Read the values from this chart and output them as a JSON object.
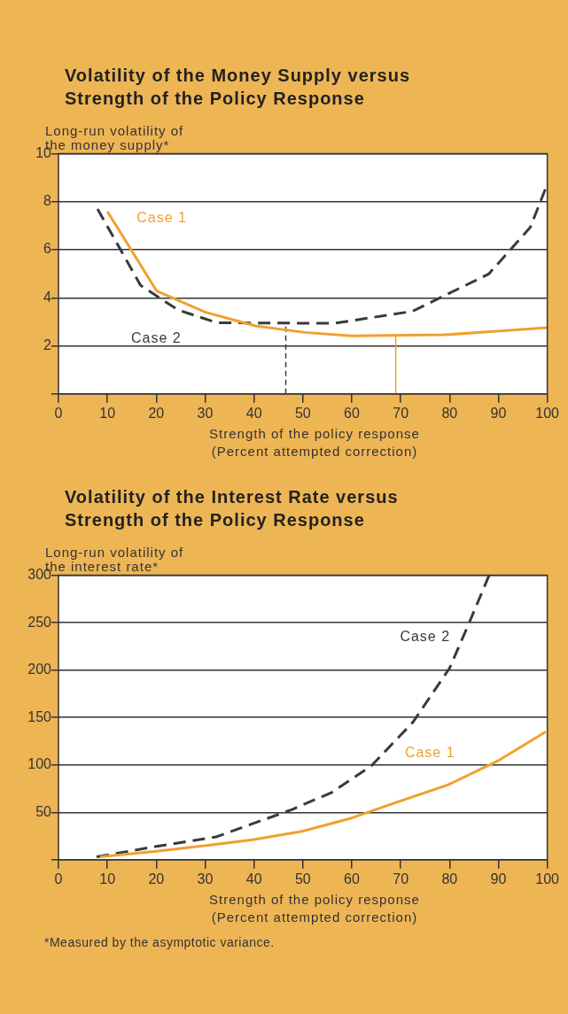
{
  "chart_data": [
    {
      "type": "line",
      "title": "Volatility of the Money Supply versus Strength of the Policy Response",
      "ylabel": "Long-run volatility of the money supply*",
      "xlabel": "Strength of the policy response (Percent attempted correction)",
      "xlim": [
        0,
        100
      ],
      "xticks": [
        0,
        10,
        20,
        30,
        40,
        50,
        60,
        70,
        80,
        90,
        100
      ],
      "ylim": [
        0,
        10
      ],
      "yticks": [
        {
          "value": 0,
          "label": null
        },
        2,
        4,
        6,
        8,
        10
      ],
      "grid": "y",
      "series": [
        {
          "name": "Case 1",
          "color": "#f0a030",
          "line_style": "solid",
          "x": [
            10,
            20.1,
            30.1,
            40.3,
            50.4,
            59.9,
            78.9,
            89,
            100
          ],
          "values": [
            7.6,
            4.28,
            3.4,
            2.83,
            2.56,
            2.42,
            2.46,
            2.6,
            2.76
          ]
        },
        {
          "name": "Case 2",
          "color": "#3a3a3a",
          "line_style": "dashed",
          "x": [
            8,
            16.8,
            24.4,
            32.5,
            56.5,
            72.4,
            88,
            96.5,
            99.7
          ],
          "values": [
            7.7,
            4.52,
            3.5,
            2.96,
            2.94,
            3.44,
            4.99,
            6.93,
            8.58
          ]
        },
        {
          "color": "#3a3a3a",
          "line_style": "dashed",
          "x": [
            46.5,
            46.5
          ],
          "values": [
            0,
            2.9
          ]
        },
        {
          "color": "#f0a030",
          "line_style": "solid",
          "x": [
            69,
            69
          ],
          "values": [
            0,
            2.43
          ]
        }
      ]
    },
    {
      "type": "line",
      "title": "Volatility of the Interest Rate versus Strength of the Policy Response",
      "ylabel": "Long-run volatility of the interest rate*",
      "xlabel": "Strength of the policy response (Percent attempted correction)",
      "xlim": [
        0,
        100
      ],
      "xticks": [
        0,
        10,
        20,
        30,
        40,
        50,
        60,
        70,
        80,
        90,
        100
      ],
      "ylim": [
        0,
        300
      ],
      "yticks": [
        {
          "value": 0,
          "label": null
        },
        50,
        100,
        150,
        200,
        250,
        300
      ],
      "grid": "y",
      "annotations": [
        "*Measured by the asymptotic variance."
      ],
      "series": [
        {
          "name": "Case 1",
          "color": "#f0a030",
          "line_style": "solid",
          "x": [
            8.5,
            20,
            30.2,
            39.7,
            49.8,
            60,
            68.8,
            79.7,
            89.8,
            99.7
          ],
          "values": [
            3,
            9,
            15,
            21,
            30,
            44,
            60,
            79,
            104,
            135
          ]
        },
        {
          "name": "Case 2",
          "color": "#3a3a3a",
          "line_style": "dashed",
          "x": [
            7.8,
            20,
            32.2,
            47.8,
            55.9,
            64,
            72.5,
            80,
            83.7,
            88.1
          ],
          "values": [
            3,
            14,
            24,
            53,
            71,
            99,
            145,
            202,
            246,
            300
          ]
        }
      ]
    }
  ]
}
